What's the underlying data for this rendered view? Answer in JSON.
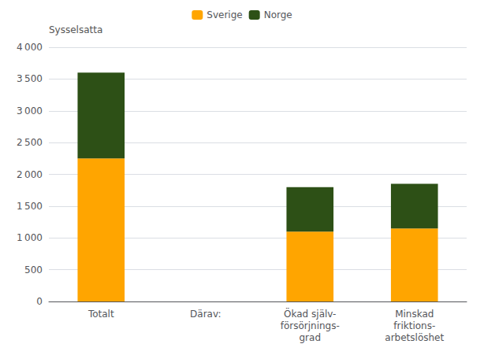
{
  "chart_data": {
    "type": "bar",
    "ylabel": "Sysselsatta",
    "categories": [
      "Totalt",
      "Därav:",
      "Ökad själv-\nförsörjnings-\ngrad",
      "Minskad\nfriktions-\narbetslöshet"
    ],
    "series": [
      {
        "name": "Sverige",
        "color": "#FFA500",
        "values": [
          2250,
          0,
          1100,
          1150
        ]
      },
      {
        "name": "Norge",
        "color": "#2D5016",
        "values": [
          1350,
          0,
          700,
          700
        ]
      }
    ],
    "stacked": true,
    "ylim": [
      0,
      4000
    ],
    "yticks": [
      0,
      500,
      {
        "value": 1000,
        "label": "1 000"
      },
      {
        "value": 1500,
        "label": "1 500"
      },
      {
        "value": 2000,
        "label": "2 000"
      },
      {
        "value": 2500,
        "label": "2 500"
      },
      {
        "value": 3000,
        "label": "3 000"
      },
      {
        "value": 3500,
        "label": "3 500"
      },
      {
        "value": 4000,
        "label": "4 000"
      }
    ],
    "grid": true,
    "legend": "top"
  }
}
